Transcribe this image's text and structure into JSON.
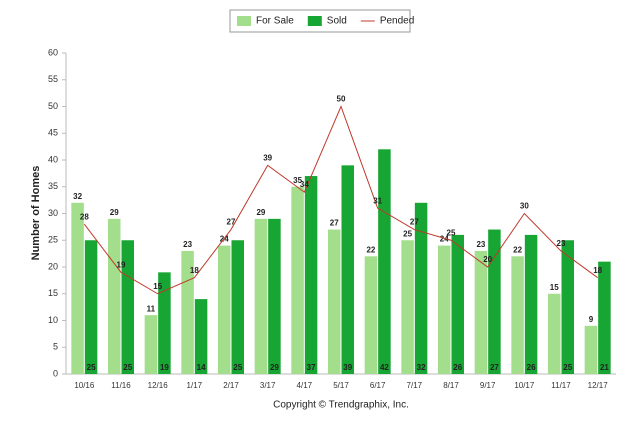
{
  "chart_data": {
    "type": "bar-line",
    "y_label": "Number of Homes",
    "footer": "Copyright © Trendgraphix, Inc.",
    "categories": [
      "10/16",
      "11/16",
      "12/16",
      "1/17",
      "2/17",
      "3/17",
      "4/17",
      "5/17",
      "6/17",
      "7/17",
      "8/17",
      "9/17",
      "10/17",
      "11/17",
      "12/17"
    ],
    "series": [
      {
        "name": "For Sale",
        "type": "bar",
        "color": "#a3de8c",
        "values": [
          32,
          29,
          11,
          23,
          24,
          29,
          35,
          27,
          22,
          25,
          24,
          23,
          22,
          15,
          9
        ]
      },
      {
        "name": "Sold",
        "type": "bar",
        "color": "#17a533",
        "values": [
          25,
          25,
          19,
          14,
          25,
          29,
          37,
          39,
          42,
          32,
          26,
          27,
          26,
          25,
          21
        ]
      },
      {
        "name": "Pended",
        "type": "line",
        "color": "#c0392b",
        "values": [
          28,
          19,
          15,
          18,
          27,
          39,
          34,
          50,
          31,
          27,
          25,
          20,
          30,
          23,
          18
        ]
      }
    ],
    "ylim": [
      0,
      60
    ],
    "yticks": [
      0,
      5,
      10,
      15,
      20,
      25,
      30,
      35,
      40,
      45,
      50,
      55,
      60
    ],
    "grid": false,
    "legend": "top"
  }
}
